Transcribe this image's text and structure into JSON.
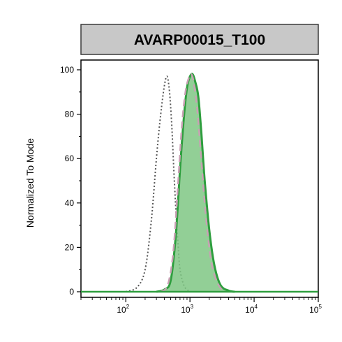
{
  "chart_data": {
    "type": "area",
    "title": "AVARP00015_T100",
    "xlabel": "",
    "ylabel": "Normalized To Mode",
    "xscale": "log",
    "xlim": [
      20,
      100000
    ],
    "ylim": [
      0,
      100
    ],
    "yticks": [
      0,
      20,
      40,
      60,
      80,
      100
    ],
    "xticks": [
      {
        "value": 100,
        "base": "10",
        "exp": "2"
      },
      {
        "value": 1000,
        "base": "10",
        "exp": "3"
      },
      {
        "value": 10000,
        "base": "10",
        "exp": "4"
      },
      {
        "value": 100000,
        "base": "10",
        "exp": "5"
      }
    ],
    "series": [
      {
        "style": "dotted-outline",
        "color": "#555555",
        "x": [
          100,
          150,
          200,
          250,
          300,
          350,
          400,
          440,
          480,
          520,
          560,
          600,
          650,
          700,
          800,
          900,
          1000
        ],
        "y": [
          0,
          2,
          10,
          32,
          60,
          80,
          93,
          97,
          90,
          75,
          55,
          38,
          22,
          10,
          3,
          1,
          0
        ]
      },
      {
        "style": "dashed-outline",
        "color": "#c9a0b4",
        "x": [
          350,
          450,
          550,
          650,
          750,
          850,
          950,
          1050,
          1150,
          1300,
          1500,
          1800,
          2200,
          2800,
          3500
        ],
        "y": [
          0,
          3,
          18,
          48,
          75,
          90,
          96,
          98,
          94,
          82,
          60,
          32,
          12,
          3,
          0
        ]
      },
      {
        "style": "filled",
        "color": "#2e9e3e",
        "fill": "#7fc784",
        "x": [
          300,
          400,
          500,
          600,
          700,
          800,
          900,
          1000,
          1100,
          1200,
          1350,
          1500,
          1700,
          2000,
          2400,
          3000,
          4000,
          5000
        ],
        "y": [
          0,
          1,
          5,
          25,
          55,
          78,
          92,
          97,
          98,
          95,
          88,
          72,
          50,
          28,
          12,
          3,
          0.5,
          0
        ]
      }
    ]
  }
}
